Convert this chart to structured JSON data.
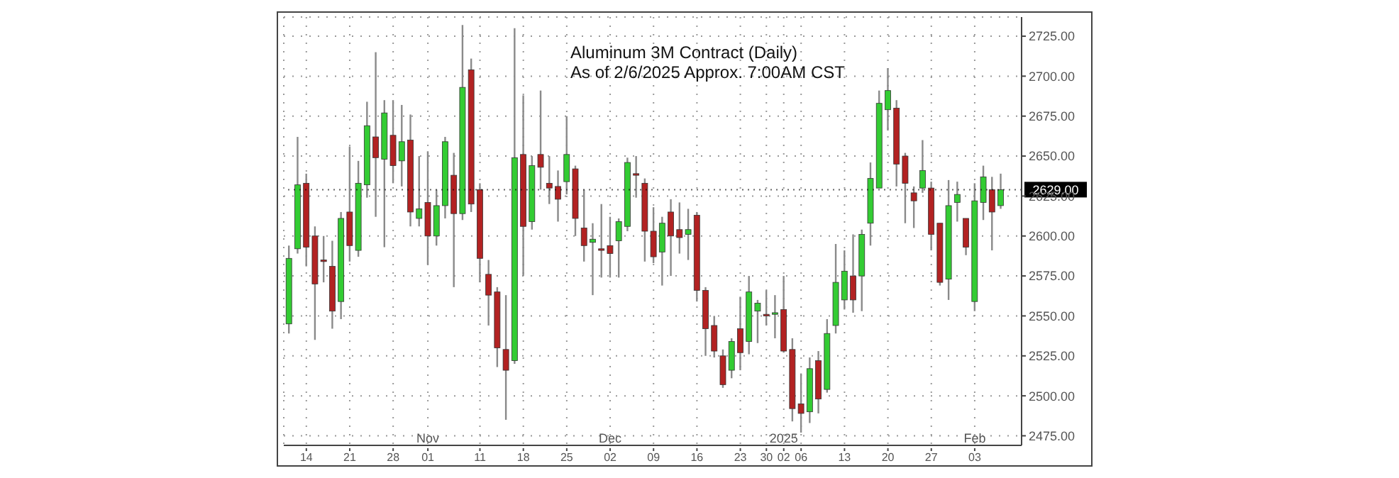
{
  "chart_data": {
    "type": "candlestick",
    "title": "Aluminum 3M Contract (Daily)",
    "subtitle": "As of 2/6/2025 Approx. 7:00AM CST",
    "categories": [
      null,
      null,
      "14",
      null,
      null,
      null,
      null,
      "21",
      null,
      null,
      null,
      null,
      "28",
      null,
      null,
      null,
      "01",
      null,
      null,
      null,
      null,
      null,
      "11",
      null,
      null,
      null,
      null,
      "18",
      null,
      null,
      null,
      null,
      "25",
      null,
      null,
      null,
      null,
      "02",
      null,
      null,
      null,
      null,
      "09",
      null,
      null,
      null,
      null,
      "16",
      null,
      null,
      null,
      null,
      "23",
      null,
      null,
      "30",
      null,
      "02",
      null,
      "06",
      null,
      null,
      null,
      null,
      "13",
      null,
      null,
      null,
      null,
      "20",
      null,
      null,
      null,
      null,
      "27",
      null,
      null,
      null,
      null,
      "03",
      null,
      null,
      null
    ],
    "ohlc": [
      [
        2545,
        2594,
        2539,
        2586
      ],
      [
        2592,
        2662,
        2589,
        2632
      ],
      [
        2633,
        2639,
        2581,
        2593
      ],
      [
        2600,
        2606,
        2535,
        2570
      ],
      [
        2585,
        2600,
        2571,
        2584
      ],
      [
        2581,
        2597,
        2542,
        2553
      ],
      [
        2559,
        2615,
        2548,
        2611
      ],
      [
        2615,
        2656,
        2584,
        2594
      ],
      [
        2591,
        2647,
        2587,
        2633
      ],
      [
        2632,
        2684,
        2624,
        2669
      ],
      [
        2662,
        2715,
        2612,
        2649
      ],
      [
        2648,
        2685,
        2593,
        2677
      ],
      [
        2663,
        2685,
        2633,
        2644
      ],
      [
        2647,
        2682,
        2631,
        2659
      ],
      [
        2660,
        2676,
        2606,
        2615
      ],
      [
        2611,
        2650,
        2606,
        2617
      ],
      [
        2621,
        2653,
        2582,
        2600
      ],
      [
        2600,
        2629,
        2594,
        2619
      ],
      [
        2619,
        2662,
        2611,
        2659
      ],
      [
        2638,
        2652,
        2568,
        2614
      ],
      [
        2614,
        2732,
        2610,
        2693
      ],
      [
        2704,
        2711,
        2615,
        2620
      ],
      [
        2629,
        2633,
        2571,
        2586
      ],
      [
        2576,
        2585,
        2544,
        2563
      ],
      [
        2565,
        2568,
        2518,
        2530
      ],
      [
        2529,
        2563,
        2485,
        2516
      ],
      [
        2522,
        2730,
        2520,
        2649
      ],
      [
        2651,
        2688,
        2575,
        2606
      ],
      [
        2609,
        2650,
        2604,
        2644
      ],
      [
        2651,
        2691,
        2629,
        2643
      ],
      [
        2633,
        2650,
        2620,
        2630
      ],
      [
        2631,
        2641,
        2609,
        2623
      ],
      [
        2634,
        2675,
        2626,
        2651
      ],
      [
        2642,
        2644,
        2600,
        2611
      ],
      [
        2605,
        2629,
        2584,
        2594
      ],
      [
        2596,
        2608,
        2563,
        2598
      ],
      [
        2592,
        2620,
        2574,
        2591
      ],
      [
        2594,
        2612,
        2574,
        2589
      ],
      [
        2597,
        2611,
        2574,
        2609
      ],
      [
        2606,
        2649,
        2603,
        2646
      ],
      [
        2639,
        2650,
        2624,
        2638
      ],
      [
        2633,
        2636,
        2584,
        2603
      ],
      [
        2603,
        2618,
        2583,
        2587
      ],
      [
        2590,
        2612,
        2569,
        2608
      ],
      [
        2615,
        2623,
        2575,
        2600
      ],
      [
        2604,
        2621,
        2589,
        2599
      ],
      [
        2601,
        2617,
        2585,
        2604
      ],
      [
        2613,
        2615,
        2559,
        2566
      ],
      [
        2566,
        2568,
        2525,
        2542
      ],
      [
        2544,
        2550,
        2524,
        2528
      ],
      [
        2525,
        2529,
        2505,
        2507
      ],
      [
        2516,
        2536,
        2511,
        2534
      ],
      [
        2542,
        2562,
        2516,
        2527
      ],
      [
        2534,
        2575,
        2526,
        2565
      ],
      [
        2553,
        2560,
        2533,
        2558
      ],
      [
        2551,
        2566,
        2544,
        2550
      ],
      [
        2551,
        2563,
        2536,
        2552
      ],
      [
        2554,
        2575,
        2527,
        2528
      ],
      [
        2529,
        2536,
        2484,
        2492
      ],
      [
        2495,
        2514,
        2477,
        2489
      ],
      [
        2490,
        2524,
        2483,
        2517
      ],
      [
        2522,
        2528,
        2489,
        2498
      ],
      [
        2504,
        2548,
        2502,
        2539
      ],
      [
        2544,
        2595,
        2539,
        2571
      ],
      [
        2560,
        2591,
        2554,
        2578
      ],
      [
        2575,
        2601,
        2552,
        2560
      ],
      [
        2575,
        2604,
        2553,
        2601
      ],
      [
        2608,
        2646,
        2594,
        2636
      ],
      [
        2630,
        2691,
        2630,
        2683
      ],
      [
        2679,
        2705,
        2666,
        2691
      ],
      [
        2680,
        2685,
        2631,
        2645
      ],
      [
        2650,
        2652,
        2608,
        2633
      ],
      [
        2627,
        2631,
        2605,
        2622
      ],
      [
        2630,
        2660,
        2627,
        2641
      ],
      [
        2630,
        2634,
        2591,
        2601
      ],
      [
        2608,
        2608,
        2569,
        2571
      ],
      [
        2573,
        2635,
        2560,
        2619
      ],
      [
        2621,
        2634,
        2609,
        2626
      ],
      [
        2611,
        2611,
        2588,
        2593
      ],
      [
        2559,
        2633,
        2553,
        2622
      ],
      [
        2621,
        2644,
        2610,
        2637
      ],
      [
        2629,
        2637,
        2591,
        2615
      ],
      [
        2619,
        2639,
        2617,
        2629
      ]
    ],
    "colors": [
      "#33cc33",
      "#33cc33",
      "#b22222",
      "#b22222",
      "#b22222",
      "#b22222",
      "#33cc33",
      "#b22222",
      "#33cc33",
      "#33cc33",
      "#b22222",
      "#33cc33",
      "#b22222",
      "#33cc33",
      "#b22222",
      "#33cc33",
      "#b22222",
      "#33cc33",
      "#33cc33",
      "#b22222",
      "#33cc33",
      "#b22222",
      "#b22222",
      "#b22222",
      "#b22222",
      "#b22222",
      "#33cc33",
      "#b22222",
      "#33cc33",
      "#b22222",
      "#b22222",
      "#b22222",
      "#33cc33",
      "#b22222",
      "#b22222",
      "#33cc33",
      "#b22222",
      "#b22222",
      "#33cc33",
      "#33cc33",
      "#b22222",
      "#b22222",
      "#b22222",
      "#33cc33",
      "#b22222",
      "#b22222",
      "#33cc33",
      "#b22222",
      "#b22222",
      "#b22222",
      "#b22222",
      "#33cc33",
      "#b22222",
      "#33cc33",
      "#33cc33",
      "#b22222",
      "#33cc33",
      "#b22222",
      "#b22222",
      "#b22222",
      "#33cc33",
      "#b22222",
      "#33cc33",
      "#33cc33",
      "#33cc33",
      "#b22222",
      "#33cc33",
      "#33cc33",
      "#33cc33",
      "#33cc33",
      "#b22222",
      "#b22222",
      "#b22222",
      "#33cc33",
      "#b22222",
      "#b22222",
      "#33cc33",
      "#33cc33",
      "#b22222",
      "#33cc33",
      "#33cc33",
      "#b22222",
      "#33cc33"
    ],
    "ylim": [
      2469,
      2737
    ],
    "yticks": [
      {
        "value": 2475,
        "label": "2475.00"
      },
      {
        "value": 2500,
        "label": "2500.00"
      },
      {
        "value": 2525,
        "label": "2525.00"
      },
      {
        "value": 2550,
        "label": "2550.00"
      },
      {
        "value": 2575,
        "label": "2575.00"
      },
      {
        "value": 2600,
        "label": "2600.00"
      },
      {
        "value": 2625,
        "label": "2625.00"
      },
      {
        "value": 2650,
        "label": "2650.00"
      },
      {
        "value": 2675,
        "label": "2675.00"
      },
      {
        "value": 2700,
        "label": "2700.00"
      },
      {
        "value": 2725,
        "label": "2725.00"
      }
    ],
    "ref_lines": [
      {
        "axis": "y",
        "value": 2629,
        "label": "2629.00",
        "color": "#000000"
      }
    ],
    "annotations": [
      "Nov",
      "Dec",
      "2025",
      "Feb"
    ],
    "grid": true
  }
}
